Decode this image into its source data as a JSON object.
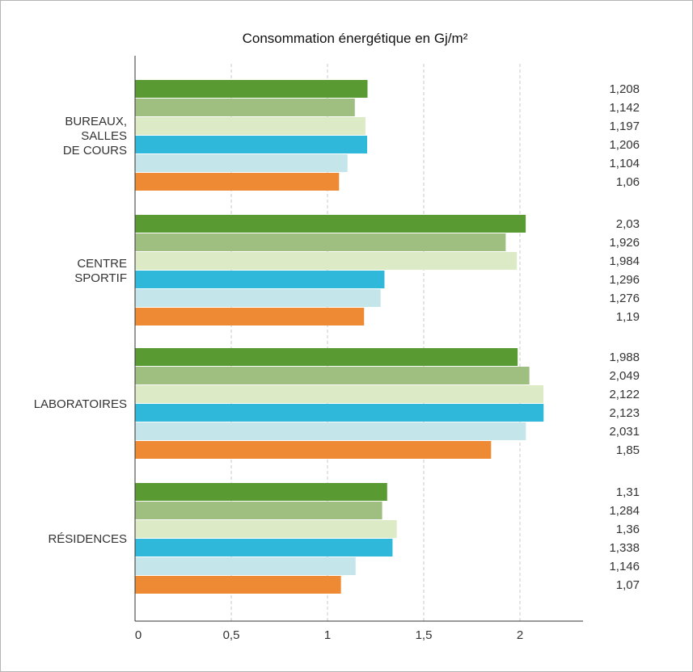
{
  "chart_data": {
    "type": "bar",
    "orientation": "horizontal",
    "title": "Consommation énergétique en Gj/m²",
    "xlabel": "",
    "ylabel": "",
    "xlim": [
      0,
      2.35
    ],
    "grid": "vertical dashed at 0.5, 1, 1.5, 2",
    "categories": [
      [
        "BUREAUX,",
        "SALLES",
        "DE COURS"
      ],
      [
        "CENTRE",
        "SPORTIF"
      ],
      [
        "LABORATOIRES"
      ],
      [
        "RÉSIDENCES"
      ]
    ],
    "x_ticks": [
      0,
      0.5,
      1,
      1.5,
      2
    ],
    "x_tick_labels": [
      "0",
      "0,5",
      "1",
      "1,5",
      "2"
    ],
    "series": [
      {
        "color": "#5a9a32",
        "values": [
          1.208,
          2.03,
          1.988,
          1.31
        ],
        "labels": [
          "1,208",
          "2,03",
          "1,988",
          "1,31"
        ]
      },
      {
        "color": "#9fbf80",
        "values": [
          1.142,
          1.926,
          2.049,
          1.284
        ],
        "labels": [
          "1,142",
          "1,926",
          "2,049",
          "1,284"
        ]
      },
      {
        "color": "#dcebc6",
        "values": [
          1.197,
          1.984,
          2.122,
          1.36
        ],
        "labels": [
          "1,197",
          "1,984",
          "2,122",
          "1,36"
        ]
      },
      {
        "color": "#30b8db",
        "values": [
          1.206,
          1.296,
          2.123,
          1.338
        ],
        "labels": [
          "1,206",
          "1,296",
          "2,123",
          "1,338"
        ]
      },
      {
        "color": "#c4e6ea",
        "values": [
          1.104,
          1.276,
          2.031,
          1.146
        ],
        "labels": [
          "1,104",
          "1,276",
          "2,031",
          "1,146"
        ]
      },
      {
        "color": "#ed8a33",
        "values": [
          1.06,
          1.19,
          1.85,
          1.07
        ],
        "labels": [
          "1,06",
          "1,19",
          "1,85",
          "1,07"
        ]
      }
    ]
  }
}
